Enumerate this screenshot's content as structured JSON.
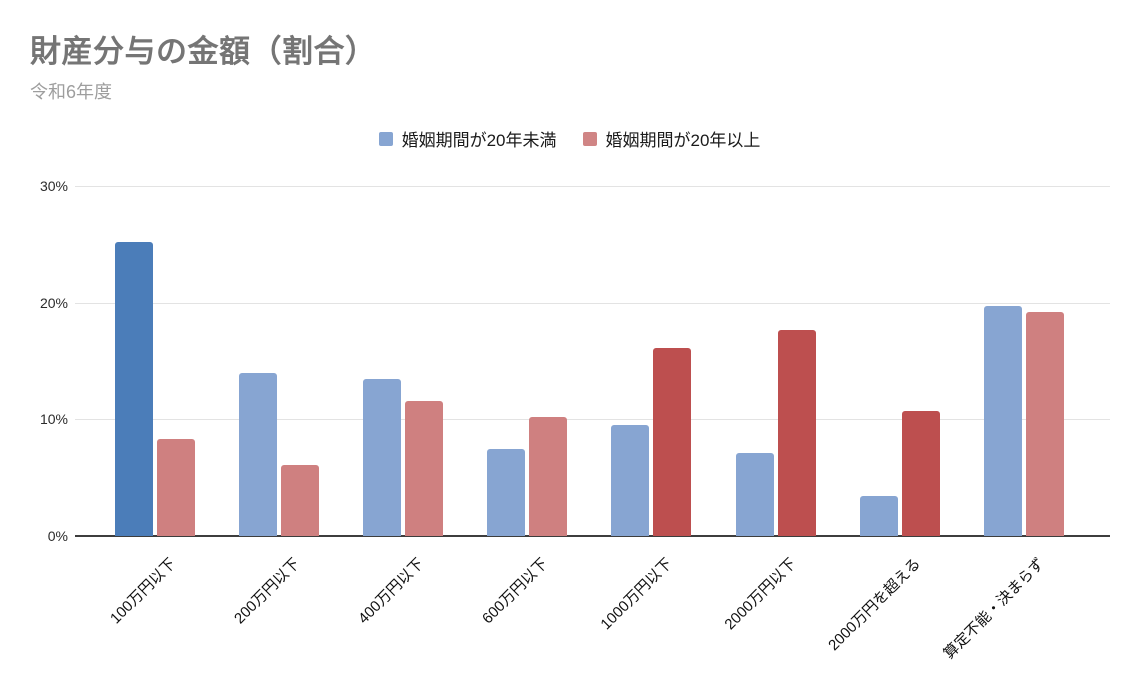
{
  "chart_data": {
    "type": "bar",
    "title": "財産分与の金額（割合）",
    "subtitle": "令和6年度",
    "categories": [
      "100万円以下",
      "200万円以下",
      "400万円以下",
      "600万円以下",
      "1000万円以下",
      "2000万円以下",
      "2000万円を超える",
      "算定不能・決まらず"
    ],
    "series": [
      {
        "name": "婚姻期間が20年未満",
        "legend_color": "#87a5d2",
        "values": [
          25.2,
          14.0,
          13.5,
          7.5,
          9.5,
          7.1,
          3.4,
          19.7
        ],
        "bar_colors": [
          "#4b7db9",
          "#87a5d2",
          "#87a5d2",
          "#87a5d2",
          "#87a5d2",
          "#87a5d2",
          "#87a5d2",
          "#87a5d2"
        ]
      },
      {
        "name": "婚姻期間が20年以上",
        "legend_color": "#d08585",
        "values": [
          8.3,
          6.1,
          11.6,
          10.2,
          16.1,
          17.7,
          10.7,
          19.2
        ],
        "bar_colors": [
          "#cf8080",
          "#cf8080",
          "#cf8080",
          "#cf8080",
          "#bd4f4f",
          "#bd4f4f",
          "#bd4f4f",
          "#cf8080"
        ]
      }
    ],
    "ylim": [
      0,
      30
    ],
    "yticks": [
      {
        "value": 0,
        "label": "0%"
      },
      {
        "value": 10,
        "label": "10%"
      },
      {
        "value": 20,
        "label": "20%"
      },
      {
        "value": 30,
        "label": "30%"
      }
    ],
    "grid": "on",
    "legend_position": "top"
  }
}
